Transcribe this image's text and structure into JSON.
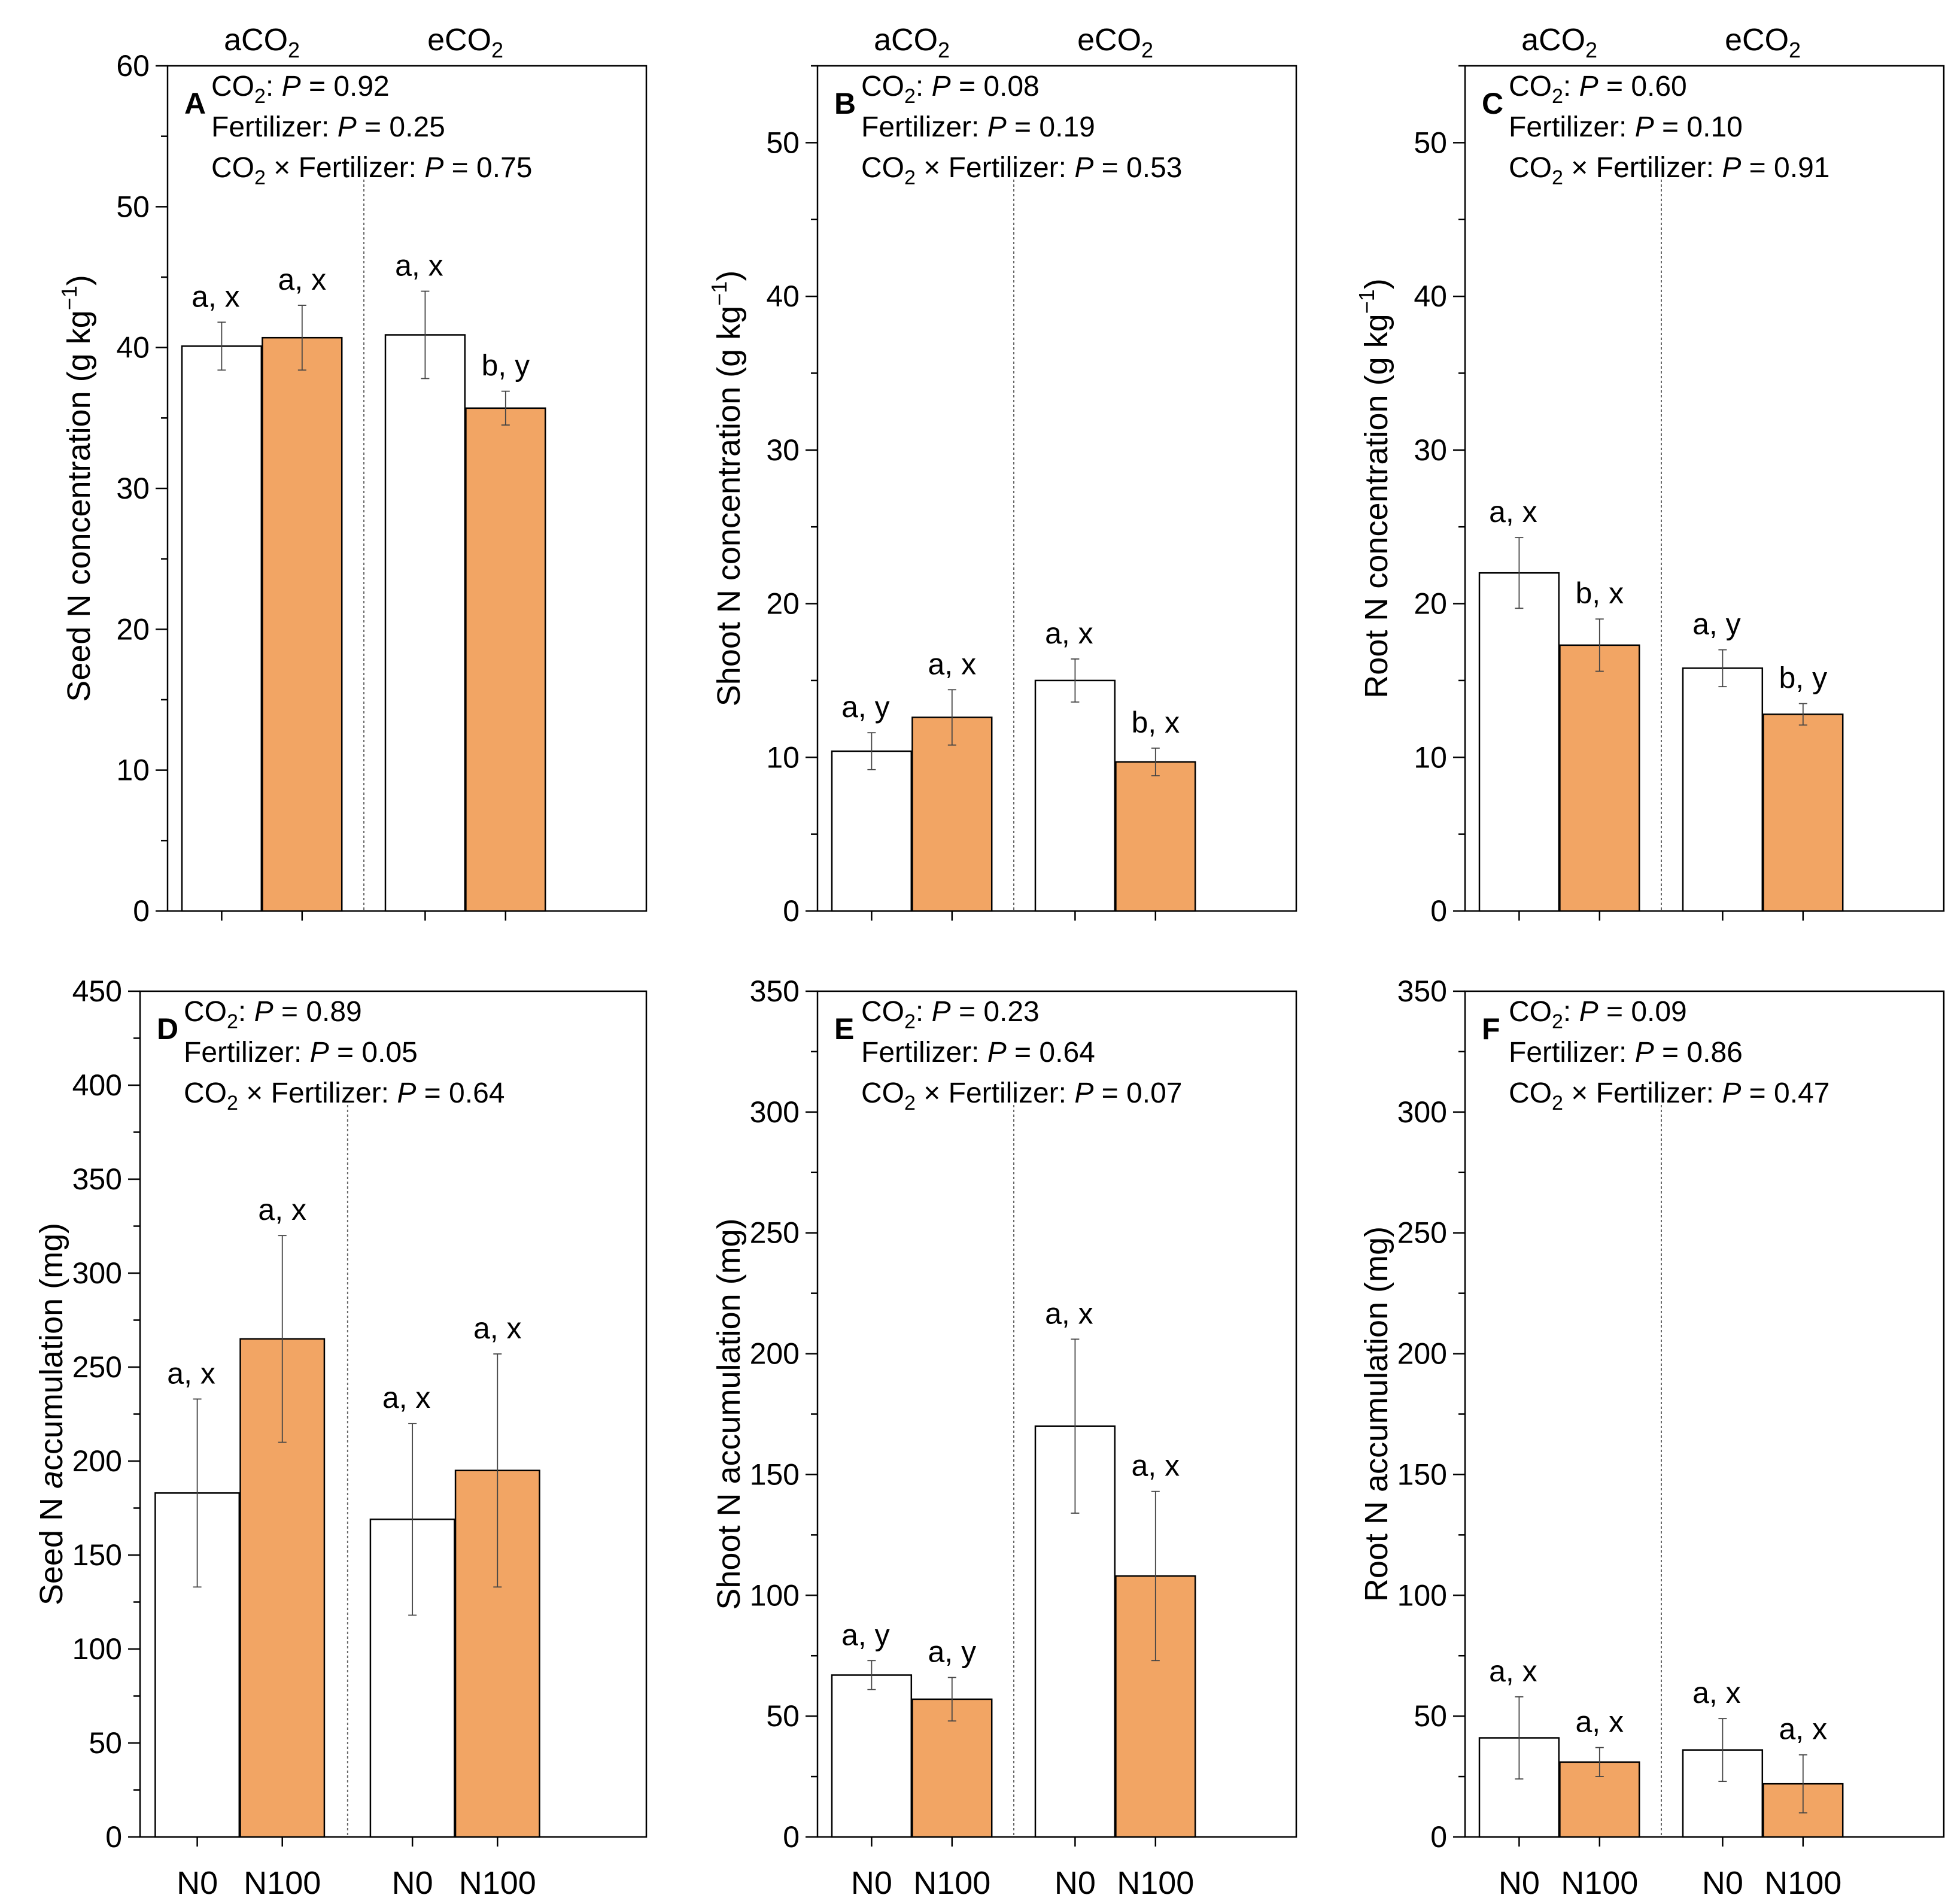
{
  "colors": {
    "control": "#ffffff",
    "fertilized": "#f2a564",
    "axis": "#000000"
  },
  "chart_data": [
    {
      "type": "bar",
      "panel": "A",
      "title": "",
      "xlabel": "",
      "ylabel_pre": "Seed N concentration (g kg",
      "ylabel_sup": "−1",
      "ylabel_post": ")",
      "ylim": [
        0,
        60
      ],
      "major": 10,
      "minor": 5,
      "yticks": [
        "0",
        "10",
        "20",
        "30",
        "40",
        "50",
        "60"
      ],
      "groups": [
        {
          "label": "aCO",
          "sub": "2"
        },
        {
          "label": "eCO",
          "sub": "2"
        }
      ],
      "categories": [
        "N0",
        "N100",
        "N0",
        "N100"
      ],
      "show_categories": false,
      "values": [
        40.1,
        40.7,
        40.9,
        35.7
      ],
      "errors": [
        1.7,
        2.3,
        3.1,
        1.2
      ],
      "labels": [
        "a, x",
        "a, x",
        "a, x",
        "b, y"
      ],
      "stats": [
        {
          "pre": "CO",
          "sub": "2",
          "mid": ": ",
          "p": "P",
          "val": " = 0.92"
        },
        {
          "pre": "Fertilizer: ",
          "sub": "",
          "mid": "",
          "p": "P",
          "val": " = 0.25"
        },
        {
          "pre": "CO",
          "sub": "2",
          "mid": " × Fertilizer: ",
          "p": "P",
          "val": " = 0.75"
        }
      ]
    },
    {
      "type": "bar",
      "panel": "B",
      "title": "",
      "xlabel": "",
      "ylabel_pre": "Shoot N concentration (g kg",
      "ylabel_sup": "−1",
      "ylabel_post": ")",
      "ylim": [
        0,
        55
      ],
      "major": 10,
      "minor": 5,
      "yticks": [
        "0",
        "10",
        "20",
        "30",
        "40",
        "50"
      ],
      "groups": [
        {
          "label": "aCO",
          "sub": "2"
        },
        {
          "label": "eCO",
          "sub": "2"
        }
      ],
      "categories": [
        "N0",
        "N100",
        "N0",
        "N100"
      ],
      "show_categories": false,
      "values": [
        10.4,
        12.6,
        15.0,
        9.7
      ],
      "errors": [
        1.2,
        1.8,
        1.4,
        0.9
      ],
      "labels": [
        "a, y",
        "a, x",
        "a, x",
        "b, x"
      ],
      "stats": [
        {
          "pre": "CO",
          "sub": "2",
          "mid": ": ",
          "p": "P",
          "val": " = 0.08"
        },
        {
          "pre": "Fertilizer: ",
          "sub": "",
          "mid": "",
          "p": "P",
          "val": " = 0.19"
        },
        {
          "pre": "CO",
          "sub": "2",
          "mid": " × Fertilizer: ",
          "p": "P",
          "val": " = 0.53"
        }
      ]
    },
    {
      "type": "bar",
      "panel": "C",
      "title": "",
      "xlabel": "",
      "ylabel_pre": "Root N concentration (g kg",
      "ylabel_sup": "−1",
      "ylabel_post": ")",
      "ylim": [
        0,
        55
      ],
      "major": 10,
      "minor": 5,
      "yticks": [
        "0",
        "10",
        "20",
        "30",
        "40",
        "50"
      ],
      "groups": [
        {
          "label": "aCO",
          "sub": "2"
        },
        {
          "label": "eCO",
          "sub": "2"
        }
      ],
      "categories": [
        "N0",
        "N100",
        "N0",
        "N100"
      ],
      "show_categories": false,
      "values": [
        22.0,
        17.3,
        15.8,
        12.8
      ],
      "errors": [
        2.3,
        1.7,
        1.2,
        0.7
      ],
      "labels": [
        "a, x",
        "b, x",
        "a, y",
        "b, y"
      ],
      "stats": [
        {
          "pre": "CO",
          "sub": "2",
          "mid": ": ",
          "p": "P",
          "val": " = 0.60"
        },
        {
          "pre": "Fertilizer: ",
          "sub": "",
          "mid": "",
          "p": "P",
          "val": " = 0.10"
        },
        {
          "pre": "CO",
          "sub": "2",
          "mid": " × Fertilizer: ",
          "p": "P",
          "val": " = 0.91"
        }
      ]
    },
    {
      "type": "bar",
      "panel": "D",
      "title": "",
      "xlabel": "",
      "ylabel_pre": "Seed N ",
      "ylabel_ital": "a",
      "ylabel_post": "ccumulation (mg)",
      "ylim": [
        0,
        450
      ],
      "major": 50,
      "minor": 25,
      "yticks": [
        "0",
        "50",
        "100",
        "150",
        "200",
        "250",
        "300",
        "350",
        "400",
        "450"
      ],
      "groups": [],
      "categories": [
        "N0",
        "N100",
        "N0",
        "N100"
      ],
      "show_categories": true,
      "values": [
        183,
        265,
        169,
        195
      ],
      "errors": [
        50,
        55,
        51,
        62
      ],
      "labels": [
        "a, x",
        "a, x",
        "a, x",
        "a, x"
      ],
      "stats": [
        {
          "pre": "CO",
          "sub": "2",
          "mid": ": ",
          "p": "P",
          "val": " = 0.89"
        },
        {
          "pre": "Fertilizer: ",
          "sub": "",
          "mid": "",
          "p": "P",
          "val": " = 0.05"
        },
        {
          "pre": "CO",
          "sub": "2",
          "mid": " × Fertilizer: ",
          "p": "P",
          "val": " = 0.64"
        }
      ]
    },
    {
      "type": "bar",
      "panel": "E",
      "title": "",
      "xlabel": "",
      "ylabel_pre": "Shoot N accumulation (mg)",
      "ylabel_post": "",
      "ylim": [
        0,
        350
      ],
      "major": 50,
      "minor": 25,
      "yticks": [
        "0",
        "50",
        "100",
        "150",
        "200",
        "250",
        "300",
        "350"
      ],
      "groups": [],
      "categories": [
        "N0",
        "N100",
        "N0",
        "N100"
      ],
      "show_categories": true,
      "values": [
        67,
        57,
        170,
        108
      ],
      "errors": [
        6,
        9,
        36,
        35
      ],
      "labels": [
        "a, y",
        "a, y",
        "a, x",
        "a, x"
      ],
      "stats": [
        {
          "pre": "CO",
          "sub": "2",
          "mid": ": ",
          "p": "P",
          "val": " = 0.23"
        },
        {
          "pre": "Fertilizer: ",
          "sub": "",
          "mid": "",
          "p": "P",
          "val": " = 0.64"
        },
        {
          "pre": "CO",
          "sub": "2",
          "mid": " × Fertilizer: ",
          "p": "P",
          "val": " = 0.07"
        }
      ]
    },
    {
      "type": "bar",
      "panel": "F",
      "title": "",
      "xlabel": "",
      "ylabel_pre": "Root N accumulation (mg)",
      "ylabel_post": "",
      "ylim": [
        0,
        350
      ],
      "major": 50,
      "minor": 25,
      "yticks": [
        "0",
        "50",
        "100",
        "150",
        "200",
        "250",
        "300",
        "350"
      ],
      "groups": [],
      "categories": [
        "N0",
        "N100",
        "N0",
        "N100"
      ],
      "show_categories": true,
      "values": [
        41,
        31,
        36,
        22
      ],
      "errors": [
        17,
        6,
        13,
        12
      ],
      "labels": [
        "a, x",
        "a, x",
        "a, x",
        "a, x"
      ],
      "stats": [
        {
          "pre": "CO",
          "sub": "2",
          "mid": ": ",
          "p": "P",
          "val": " = 0.09"
        },
        {
          "pre": "Fertilizer: ",
          "sub": "",
          "mid": "",
          "p": "P",
          "val": " = 0.86"
        },
        {
          "pre": "CO",
          "sub": "2",
          "mid": " × Fertilizer: ",
          "p": "P",
          "val": " = 0.47"
        }
      ]
    }
  ]
}
